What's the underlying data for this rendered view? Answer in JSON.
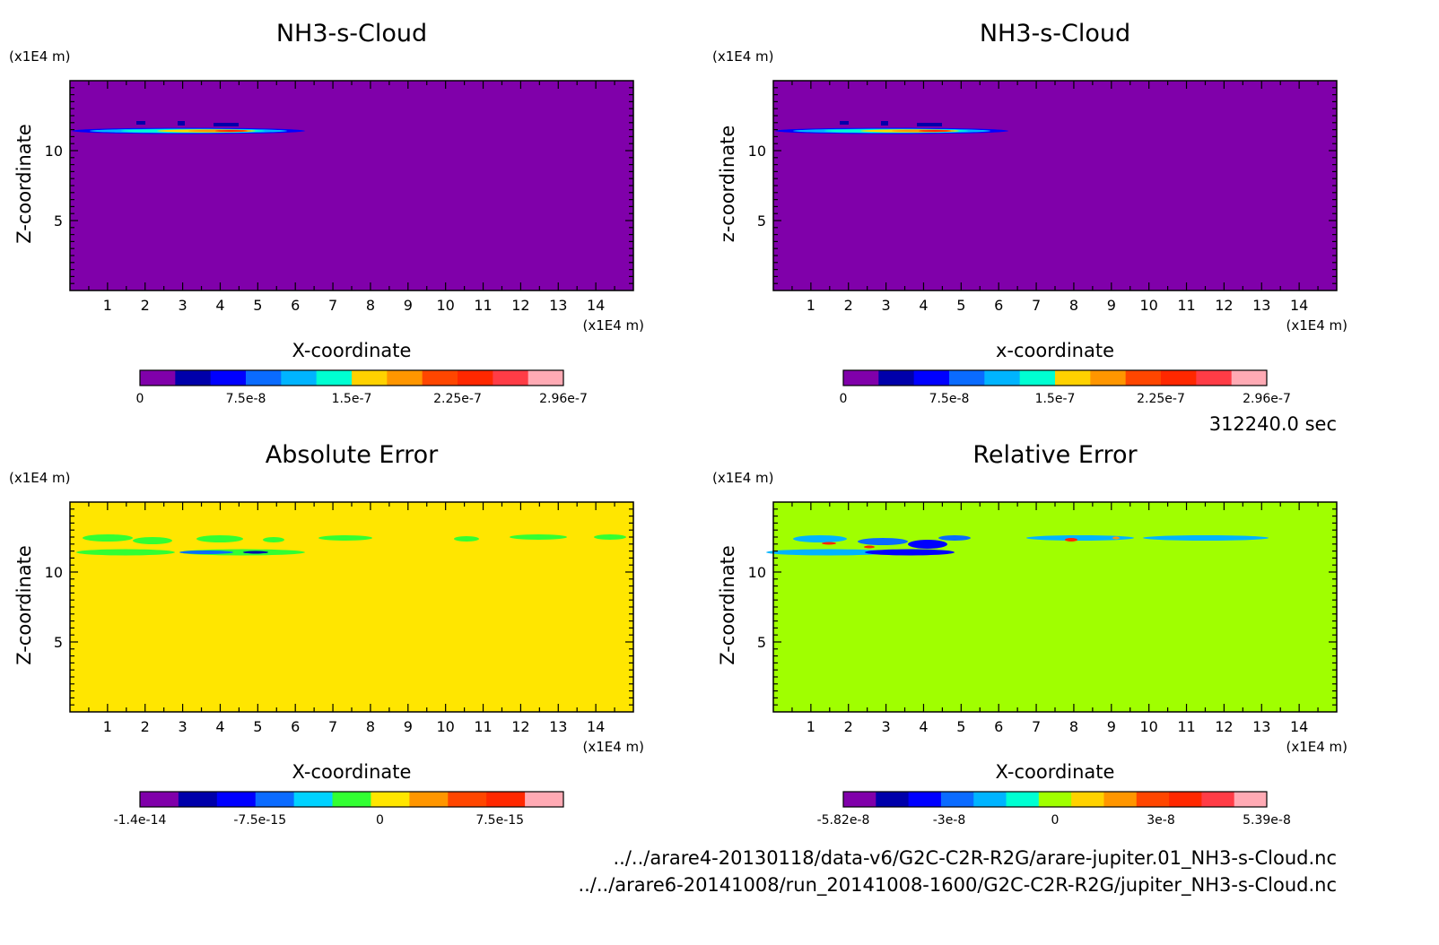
{
  "time_label": "312240.0 sec",
  "file_paths": [
    "../../arare4-20130118/data-v6/G2C-C2R-R2G/arare-jupiter.01_NH3-s-Cloud.nc",
    "../../arare6-20141008/run_20141008-1600/G2C-C2R-R2G/jupiter_NH3-s-Cloud.nc"
  ],
  "chart_data": [
    {
      "type": "heatmap",
      "title": "NH3-s-Cloud",
      "xlabel": "X-coordinate",
      "ylabel": "Z-coordinate",
      "x_unit": "(x1E4 m)",
      "y_unit": "(x1E4 m)",
      "xlim": [
        0,
        15
      ],
      "ylim": [
        0,
        15
      ],
      "x_ticks": [
        "1",
        "2",
        "3",
        "4",
        "5",
        "6",
        "7",
        "8",
        "9",
        "10",
        "11",
        "12",
        "13",
        "14"
      ],
      "y_ticks": [
        "5",
        "10"
      ],
      "background_color": "#8000aa",
      "colorbar": {
        "colors": [
          "#8000aa",
          "#0000aa",
          "#0000ff",
          "#0a6bff",
          "#00b4ff",
          "#00ffd2",
          "#ffd200",
          "#ff9600",
          "#ff4600",
          "#ff2800",
          "#ff3c46",
          "#ffaab4"
        ],
        "tick_labels": [
          "0",
          "7.5e-8",
          "1.5e-7",
          "2.25e-7",
          "2.96e-7"
        ]
      }
    },
    {
      "type": "heatmap",
      "title": "NH3-s-Cloud",
      "xlabel": "x-coordinate",
      "ylabel": "z-coordinate",
      "x_unit": "(x1E4 m)",
      "y_unit": "(x1E4 m)",
      "xlim": [
        0,
        15
      ],
      "ylim": [
        0,
        15
      ],
      "x_ticks": [
        "1",
        "2",
        "3",
        "4",
        "5",
        "6",
        "7",
        "8",
        "9",
        "10",
        "11",
        "12",
        "13",
        "14"
      ],
      "y_ticks": [
        "5",
        "10"
      ],
      "background_color": "#8000aa",
      "colorbar": {
        "colors": [
          "#8000aa",
          "#0000aa",
          "#0000ff",
          "#0a6bff",
          "#00b4ff",
          "#00ffd2",
          "#ffd200",
          "#ff9600",
          "#ff4600",
          "#ff2800",
          "#ff3c46",
          "#ffaab4"
        ],
        "tick_labels": [
          "0",
          "7.5e-8",
          "1.5e-7",
          "2.25e-7",
          "2.96e-7"
        ]
      }
    },
    {
      "type": "heatmap",
      "title": "Absolute Error",
      "xlabel": "X-coordinate",
      "ylabel": "Z-coordinate",
      "x_unit": "(x1E4 m)",
      "y_unit": "(x1E4 m)",
      "xlim": [
        0,
        15
      ],
      "ylim": [
        0,
        15
      ],
      "x_ticks": [
        "1",
        "2",
        "3",
        "4",
        "5",
        "6",
        "7",
        "8",
        "9",
        "10",
        "11",
        "12",
        "13",
        "14"
      ],
      "y_ticks": [
        "5",
        "10"
      ],
      "background_color": "#ffe600",
      "colorbar": {
        "colors": [
          "#8000aa",
          "#0000aa",
          "#0000ff",
          "#0a6bff",
          "#00d2ff",
          "#32ff32",
          "#ffe600",
          "#ff9600",
          "#ff4600",
          "#ff2800",
          "#ffaab4"
        ],
        "tick_labels": [
          "-1.4e-14",
          "-7.5e-15",
          "0",
          "7.5e-15"
        ]
      }
    },
    {
      "type": "heatmap",
      "title": "Relative Error",
      "xlabel": "X-coordinate",
      "ylabel": "Z-coordinate",
      "x_unit": "(x1E4 m)",
      "y_unit": "(x1E4 m)",
      "xlim": [
        0,
        15
      ],
      "ylim": [
        0,
        15
      ],
      "x_ticks": [
        "1",
        "2",
        "3",
        "4",
        "5",
        "6",
        "7",
        "8",
        "9",
        "10",
        "11",
        "12",
        "13",
        "14"
      ],
      "y_ticks": [
        "5",
        "10"
      ],
      "background_color": "#a0ff00",
      "colorbar": {
        "colors": [
          "#8000aa",
          "#0000aa",
          "#0000ff",
          "#0a6bff",
          "#00b4ff",
          "#00ffd2",
          "#a0ff00",
          "#ffd200",
          "#ff9600",
          "#ff4600",
          "#ff2800",
          "#ff3c46",
          "#ffaab4"
        ],
        "tick_labels": [
          "-5.82e-8",
          "-3e-8",
          "0",
          "3e-8",
          "5.39e-8"
        ]
      }
    }
  ]
}
